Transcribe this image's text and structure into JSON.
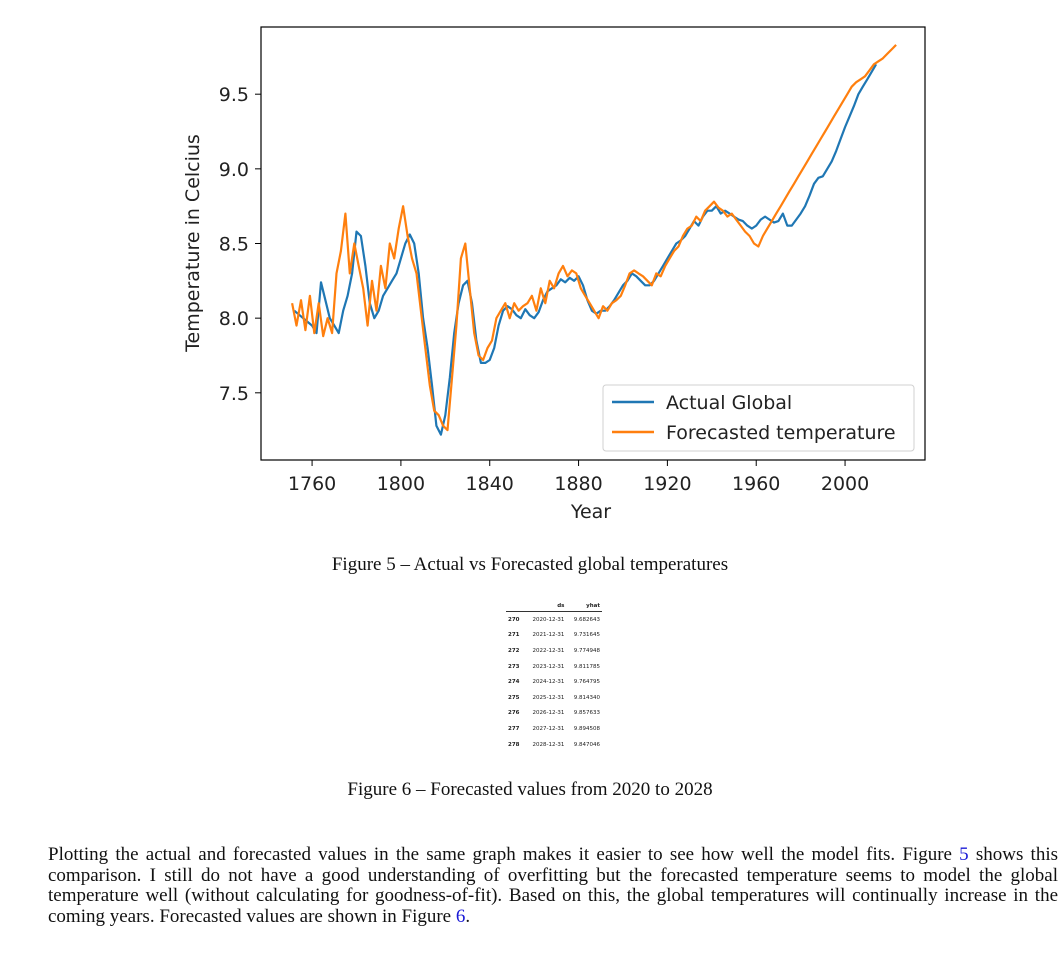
{
  "figure5": {
    "caption": "Figure 5 – Actual vs Forecasted global temperatures",
    "chart_data": {
      "type": "line",
      "xlabel": "Year",
      "ylabel": "Temperature in Celcius",
      "xlim": [
        1737,
        2036
      ],
      "ylim": [
        7.05,
        9.95
      ],
      "xticks": [
        1760,
        1800,
        1840,
        1880,
        1920,
        1960,
        2000
      ],
      "xtick_labels": [
        "1760",
        "1800",
        "1840",
        "1880",
        "1920",
        "1960",
        "2000"
      ],
      "yticks": [
        7.5,
        8.0,
        8.5,
        9.0,
        9.5
      ],
      "ytick_labels": [
        "7.5",
        "8.0",
        "8.5",
        "9.0",
        "9.5"
      ],
      "legend_position": "lower-right",
      "series": [
        {
          "name": "Actual Global",
          "color": "#1f77b4",
          "x": [
            1752,
            1756,
            1760,
            1762,
            1764,
            1766,
            1768,
            1770,
            1772,
            1774,
            1776,
            1778,
            1780,
            1782,
            1784,
            1786,
            1788,
            1790,
            1792,
            1794,
            1796,
            1798,
            1800,
            1802,
            1804,
            1806,
            1808,
            1810,
            1812,
            1814,
            1816,
            1818,
            1820,
            1822,
            1824,
            1826,
            1828,
            1830,
            1832,
            1834,
            1836,
            1838,
            1840,
            1842,
            1844,
            1846,
            1848,
            1850,
            1852,
            1854,
            1856,
            1858,
            1860,
            1862,
            1864,
            1866,
            1868,
            1870,
            1872,
            1874,
            1876,
            1878,
            1880,
            1882,
            1884,
            1886,
            1888,
            1890,
            1892,
            1894,
            1896,
            1898,
            1900,
            1902,
            1904,
            1906,
            1908,
            1910,
            1912,
            1914,
            1916,
            1918,
            1920,
            1922,
            1924,
            1926,
            1928,
            1930,
            1932,
            1934,
            1936,
            1938,
            1940,
            1942,
            1944,
            1946,
            1948,
            1950,
            1952,
            1954,
            1956,
            1958,
            1960,
            1962,
            1964,
            1966,
            1968,
            1970,
            1972,
            1974,
            1976,
            1978,
            1980,
            1982,
            1984,
            1986,
            1988,
            1990,
            1992,
            1994,
            1996,
            1998,
            2000,
            2002,
            2004,
            2006,
            2008,
            2010,
            2012,
            2014
          ],
          "values": [
            8.05,
            8.0,
            7.95,
            7.9,
            8.24,
            8.12,
            8.0,
            7.95,
            7.9,
            8.05,
            8.15,
            8.3,
            8.58,
            8.55,
            8.35,
            8.1,
            8.0,
            8.05,
            8.15,
            8.2,
            8.25,
            8.3,
            8.4,
            8.5,
            8.56,
            8.5,
            8.3,
            8.0,
            7.8,
            7.55,
            7.28,
            7.22,
            7.35,
            7.6,
            7.9,
            8.1,
            8.22,
            8.25,
            8.1,
            7.85,
            7.7,
            7.7,
            7.72,
            7.8,
            7.95,
            8.05,
            8.08,
            8.06,
            8.02,
            8.0,
            8.06,
            8.02,
            8.0,
            8.04,
            8.12,
            8.18,
            8.2,
            8.22,
            8.26,
            8.24,
            8.27,
            8.25,
            8.28,
            8.22,
            8.12,
            8.05,
            8.03,
            8.05,
            8.05,
            8.08,
            8.12,
            8.17,
            8.22,
            8.25,
            8.3,
            8.28,
            8.25,
            8.22,
            8.22,
            8.25,
            8.3,
            8.35,
            8.4,
            8.45,
            8.5,
            8.52,
            8.55,
            8.6,
            8.65,
            8.62,
            8.68,
            8.72,
            8.72,
            8.75,
            8.7,
            8.72,
            8.7,
            8.68,
            8.66,
            8.65,
            8.62,
            8.6,
            8.62,
            8.66,
            8.68,
            8.66,
            8.64,
            8.65,
            8.7,
            8.62,
            8.62,
            8.66,
            8.7,
            8.75,
            8.82,
            8.9,
            8.94,
            8.95,
            9.0,
            9.05,
            9.12,
            9.2,
            9.28,
            9.35,
            9.42,
            9.5,
            9.55,
            9.6,
            9.65,
            9.7
          ]
        },
        {
          "name": "Forecasted temperature",
          "color": "#ff7f0e",
          "x": [
            1751,
            1753,
            1755,
            1757,
            1759,
            1761,
            1763,
            1765,
            1767,
            1769,
            1771,
            1773,
            1775,
            1777,
            1779,
            1781,
            1783,
            1785,
            1787,
            1789,
            1791,
            1793,
            1795,
            1797,
            1799,
            1801,
            1803,
            1805,
            1807,
            1809,
            1811,
            1813,
            1815,
            1817,
            1819,
            1821,
            1823,
            1825,
            1827,
            1829,
            1831,
            1833,
            1835,
            1837,
            1839,
            1841,
            1843,
            1845,
            1847,
            1849,
            1851,
            1853,
            1855,
            1857,
            1859,
            1861,
            1863,
            1865,
            1867,
            1869,
            1871,
            1873,
            1875,
            1877,
            1879,
            1881,
            1883,
            1885,
            1887,
            1889,
            1891,
            1893,
            1895,
            1897,
            1899,
            1901,
            1903,
            1905,
            1907,
            1909,
            1911,
            1913,
            1915,
            1917,
            1919,
            1921,
            1923,
            1925,
            1927,
            1929,
            1931,
            1933,
            1935,
            1937,
            1939,
            1941,
            1943,
            1945,
            1947,
            1949,
            1951,
            1953,
            1955,
            1957,
            1959,
            1961,
            1963,
            1965,
            1967,
            1969,
            1971,
            1973,
            1975,
            1977,
            1979,
            1981,
            1983,
            1985,
            1987,
            1989,
            1991,
            1993,
            1995,
            1997,
            1999,
            2001,
            2003,
            2005,
            2007,
            2009,
            2011,
            2013,
            2015,
            2017,
            2019,
            2021,
            2023
          ],
          "values": [
            8.1,
            7.95,
            8.12,
            7.92,
            8.15,
            7.9,
            8.1,
            7.88,
            8.0,
            7.9,
            8.3,
            8.45,
            8.7,
            8.3,
            8.5,
            8.35,
            8.2,
            7.95,
            8.25,
            8.05,
            8.35,
            8.2,
            8.5,
            8.4,
            8.6,
            8.75,
            8.55,
            8.4,
            8.3,
            8.05,
            7.8,
            7.55,
            7.38,
            7.35,
            7.28,
            7.25,
            7.6,
            7.95,
            8.4,
            8.5,
            8.2,
            7.9,
            7.75,
            7.72,
            7.8,
            7.85,
            8.0,
            8.05,
            8.1,
            8.0,
            8.1,
            8.05,
            8.08,
            8.1,
            8.15,
            8.05,
            8.2,
            8.1,
            8.25,
            8.2,
            8.3,
            8.35,
            8.28,
            8.32,
            8.3,
            8.2,
            8.15,
            8.1,
            8.05,
            8.0,
            8.08,
            8.05,
            8.1,
            8.12,
            8.15,
            8.22,
            8.3,
            8.32,
            8.3,
            8.28,
            8.25,
            8.22,
            8.3,
            8.28,
            8.35,
            8.4,
            8.45,
            8.48,
            8.55,
            8.6,
            8.62,
            8.68,
            8.65,
            8.72,
            8.75,
            8.78,
            8.74,
            8.72,
            8.68,
            8.7,
            8.66,
            8.62,
            8.58,
            8.55,
            8.5,
            8.48,
            8.55,
            8.6,
            8.65,
            8.7,
            8.75,
            8.8,
            8.85,
            8.9,
            8.95,
            9.0,
            9.05,
            9.1,
            9.15,
            9.2,
            9.25,
            9.3,
            9.35,
            9.4,
            9.45,
            9.5,
            9.55,
            9.58,
            9.6,
            9.62,
            9.66,
            9.7,
            9.72,
            9.74,
            9.77,
            9.8,
            9.83
          ]
        }
      ]
    }
  },
  "figure6": {
    "caption": "Figure 6 – Forecasted values from 2020 to 2028",
    "table": {
      "columns": [
        "",
        "ds",
        "yhat"
      ],
      "rows": [
        [
          "270",
          "2020-12-31",
          "9.682643"
        ],
        [
          "271",
          "2021-12-31",
          "9.731645"
        ],
        [
          "272",
          "2022-12-31",
          "9.774948"
        ],
        [
          "273",
          "2023-12-31",
          "9.811785"
        ],
        [
          "274",
          "2024-12-31",
          "9.764795"
        ],
        [
          "275",
          "2025-12-31",
          "9.814340"
        ],
        [
          "276",
          "2026-12-31",
          "9.857633"
        ],
        [
          "277",
          "2027-12-31",
          "9.894508"
        ],
        [
          "278",
          "2028-12-31",
          "9.847046"
        ]
      ]
    }
  },
  "body": {
    "p1": "Plotting the actual and forecasted values in the same graph makes it easier to see how well the model fits. Figure ",
    "ref1": "5",
    "p2": " shows this comparison. I still do not have a good understanding of overfitting but the forecasted temperature seems to model the global temperature well (without calculating for goodness-of-fit). Based on this, the global temperatures will continually increase in the coming years. Forecasted values are shown in Figure ",
    "ref2": "6",
    "p3": "."
  }
}
